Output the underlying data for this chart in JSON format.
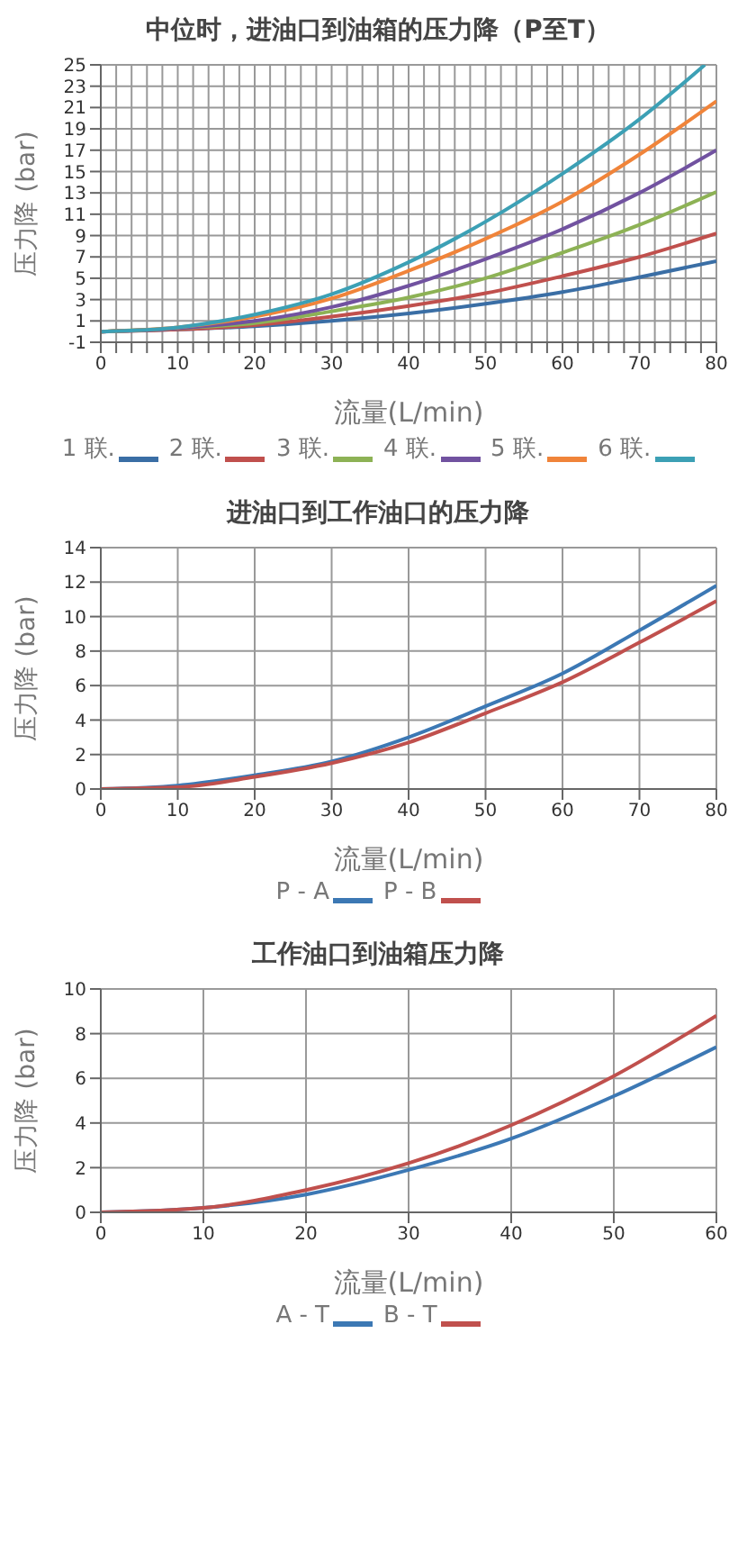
{
  "chart_data": [
    {
      "type": "line",
      "title": "中位时，进油口到油箱的压力降（P至T）",
      "xlabel": "流量(L/min)",
      "ylabel": "压力降 (bar)",
      "x": [
        0,
        10,
        20,
        30,
        40,
        50,
        60,
        70,
        80
      ],
      "series": [
        {
          "name": "1 联.",
          "color": "#3a6ea5",
          "values": [
            0,
            0.2,
            0.5,
            1.0,
            1.7,
            2.6,
            3.7,
            5.1,
            6.6
          ]
        },
        {
          "name": "2 联.",
          "color": "#c0504d",
          "values": [
            0,
            0.2,
            0.6,
            1.4,
            2.4,
            3.6,
            5.2,
            7.0,
            9.2
          ]
        },
        {
          "name": "3 联.",
          "color": "#8db255",
          "values": [
            0,
            0.3,
            0.8,
            1.9,
            3.2,
            5.0,
            7.4,
            10.0,
            13.1
          ]
        },
        {
          "name": "4 联.",
          "color": "#7152a0",
          "values": [
            0,
            0.3,
            1.0,
            2.3,
            4.3,
            6.8,
            9.6,
            13.0,
            17.0
          ]
        },
        {
          "name": "5 联.",
          "color": "#f0843a",
          "values": [
            0,
            0.4,
            1.4,
            3.1,
            5.7,
            8.7,
            12.2,
            16.6,
            21.6
          ]
        },
        {
          "name": "6 联.",
          "color": "#3ca0b5",
          "x": [
            0,
            10,
            20,
            30,
            40,
            50,
            60,
            70,
            78.5
          ],
          "values": [
            0,
            0.4,
            1.6,
            3.5,
            6.5,
            10.3,
            14.8,
            19.9,
            25
          ]
        }
      ],
      "xlim": [
        0,
        80
      ],
      "xticks": [
        0,
        {
          "value": 2,
          "label": null
        },
        {
          "value": 4,
          "label": null
        },
        {
          "value": 6,
          "label": null
        },
        {
          "value": 8,
          "label": null
        },
        10,
        {
          "value": 12,
          "label": null
        },
        {
          "value": 14,
          "label": null
        },
        {
          "value": 16,
          "label": null
        },
        {
          "value": 18,
          "label": null
        },
        20,
        {
          "value": 22,
          "label": null
        },
        {
          "value": 24,
          "label": null
        },
        {
          "value": 26,
          "label": null
        },
        {
          "value": 28,
          "label": null
        },
        30,
        {
          "value": 32,
          "label": null
        },
        {
          "value": 34,
          "label": null
        },
        {
          "value": 36,
          "label": null
        },
        {
          "value": 38,
          "label": null
        },
        40,
        {
          "value": 42,
          "label": null
        },
        {
          "value": 44,
          "label": null
        },
        {
          "value": 46,
          "label": null
        },
        {
          "value": 48,
          "label": null
        },
        50,
        {
          "value": 52,
          "label": null
        },
        {
          "value": 54,
          "label": null
        },
        {
          "value": 56,
          "label": null
        },
        {
          "value": 58,
          "label": null
        },
        60,
        {
          "value": 62,
          "label": null
        },
        {
          "value": 64,
          "label": null
        },
        {
          "value": 66,
          "label": null
        },
        {
          "value": 68,
          "label": null
        },
        70,
        {
          "value": 72,
          "label": null
        },
        {
          "value": 74,
          "label": null
        },
        {
          "value": 76,
          "label": null
        },
        {
          "value": 78,
          "label": null
        },
        80
      ],
      "ylim": [
        -1,
        25
      ],
      "yticks": [
        -1,
        1,
        3,
        5,
        7,
        9,
        11,
        13,
        15,
        17,
        19,
        21,
        23,
        25
      ],
      "grid": true,
      "legend": "bottom",
      "marker": "none",
      "line_style": "solid"
    },
    {
      "type": "line",
      "title": "进油口到工作油口的压力降",
      "xlabel": "流量(L/min)",
      "ylabel": "压力降 (bar)",
      "x": [
        0,
        10,
        20,
        30,
        40,
        50,
        60,
        70,
        80
      ],
      "series": [
        {
          "name": "P - A",
          "color": "#3c78b4",
          "values": [
            0,
            0.2,
            0.8,
            1.6,
            3.0,
            4.8,
            6.7,
            9.2,
            11.8
          ]
        },
        {
          "name": "P - B",
          "color": "#c0504d",
          "values": [
            0,
            0.1,
            0.7,
            1.5,
            2.7,
            4.4,
            6.2,
            8.5,
            10.9
          ]
        }
      ],
      "xlim": [
        0,
        80
      ],
      "xticks": [
        0,
        10,
        20,
        30,
        40,
        50,
        60,
        70,
        80
      ],
      "ylim": [
        0,
        14
      ],
      "yticks": [
        0,
        2,
        4,
        6,
        8,
        10,
        12,
        14
      ],
      "grid": true,
      "legend": "bottom",
      "marker": "none",
      "line_style": "solid"
    },
    {
      "type": "line",
      "title": "工作油口到油箱压力降",
      "xlabel": "流量(L/min)",
      "ylabel": "压力降 (bar)",
      "x": [
        0,
        10,
        20,
        30,
        40,
        50,
        60
      ],
      "series": [
        {
          "name": "A - T",
          "color": "#3c78b4",
          "values": [
            0,
            0.2,
            0.8,
            1.9,
            3.3,
            5.2,
            7.4
          ]
        },
        {
          "name": "B - T",
          "color": "#c0504d",
          "values": [
            0,
            0.2,
            1.0,
            2.2,
            3.9,
            6.1,
            8.8
          ]
        }
      ],
      "xlim": [
        0,
        60
      ],
      "xticks": [
        0,
        10,
        20,
        30,
        40,
        50,
        60
      ],
      "ylim": [
        0,
        10
      ],
      "yticks": [
        0,
        2,
        4,
        6,
        8,
        10
      ],
      "grid": true,
      "legend": "bottom",
      "marker": "none",
      "line_style": "solid"
    }
  ]
}
